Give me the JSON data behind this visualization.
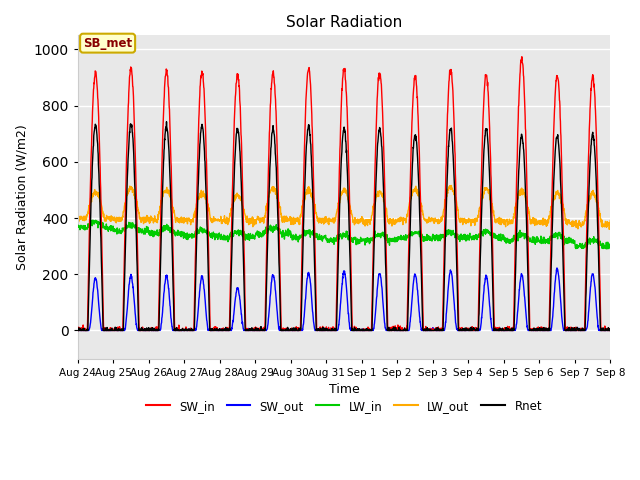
{
  "title": "Solar Radiation",
  "xlabel": "Time",
  "ylabel": "Solar Radiation (W/m2)",
  "ylim": [
    -100,
    1050
  ],
  "annotation_text": "SB_met",
  "annotation_bg": "#ffffcc",
  "annotation_border": "#ccaa00",
  "annotation_text_color": "#880000",
  "bg_color": "#e8e8e8",
  "grid_color": "white",
  "series": {
    "SW_in": {
      "color": "#ff0000",
      "lw": 1.0
    },
    "SW_out": {
      "color": "#0000ff",
      "lw": 1.0
    },
    "LW_in": {
      "color": "#00cc00",
      "lw": 1.0
    },
    "LW_out": {
      "color": "#ffaa00",
      "lw": 1.0
    },
    "Rnet": {
      "color": "#000000",
      "lw": 1.0
    }
  },
  "tick_labels": [
    "Aug 24",
    "Aug 25",
    "Aug 26",
    "Aug 27",
    "Aug 28",
    "Aug 29",
    "Aug 30",
    "Aug 31",
    "Sep 1",
    "Sep 2",
    "Sep 3",
    "Sep 4",
    "Sep 5",
    "Sep 6",
    "Sep 7",
    "Sep 8"
  ],
  "n_days": 15,
  "pts_per_day": 144,
  "SW_in_peak": [
    918,
    930,
    924,
    920,
    910,
    916,
    935,
    930,
    920,
    902,
    930,
    910,
    964,
    908,
    904
  ],
  "SW_out_peak": [
    185,
    195,
    193,
    192,
    150,
    198,
    205,
    210,
    203,
    200,
    213,
    193,
    198,
    220,
    203
  ],
  "LW_in_base": [
    365,
    355,
    345,
    338,
    330,
    345,
    330,
    320,
    322,
    328,
    330,
    332,
    322,
    318,
    300
  ],
  "LW_out_base": [
    398,
    396,
    394,
    392,
    390,
    395,
    392,
    390,
    388,
    392,
    392,
    390,
    386,
    385,
    378
  ],
  "LW_out_day_bump": [
    95,
    112,
    104,
    96,
    88,
    113,
    106,
    108,
    105,
    111,
    116,
    113,
    112,
    103,
    110
  ],
  "Rnet_peak": [
    730,
    735,
    728,
    728,
    718,
    718,
    728,
    718,
    718,
    698,
    718,
    718,
    692,
    692,
    698
  ]
}
